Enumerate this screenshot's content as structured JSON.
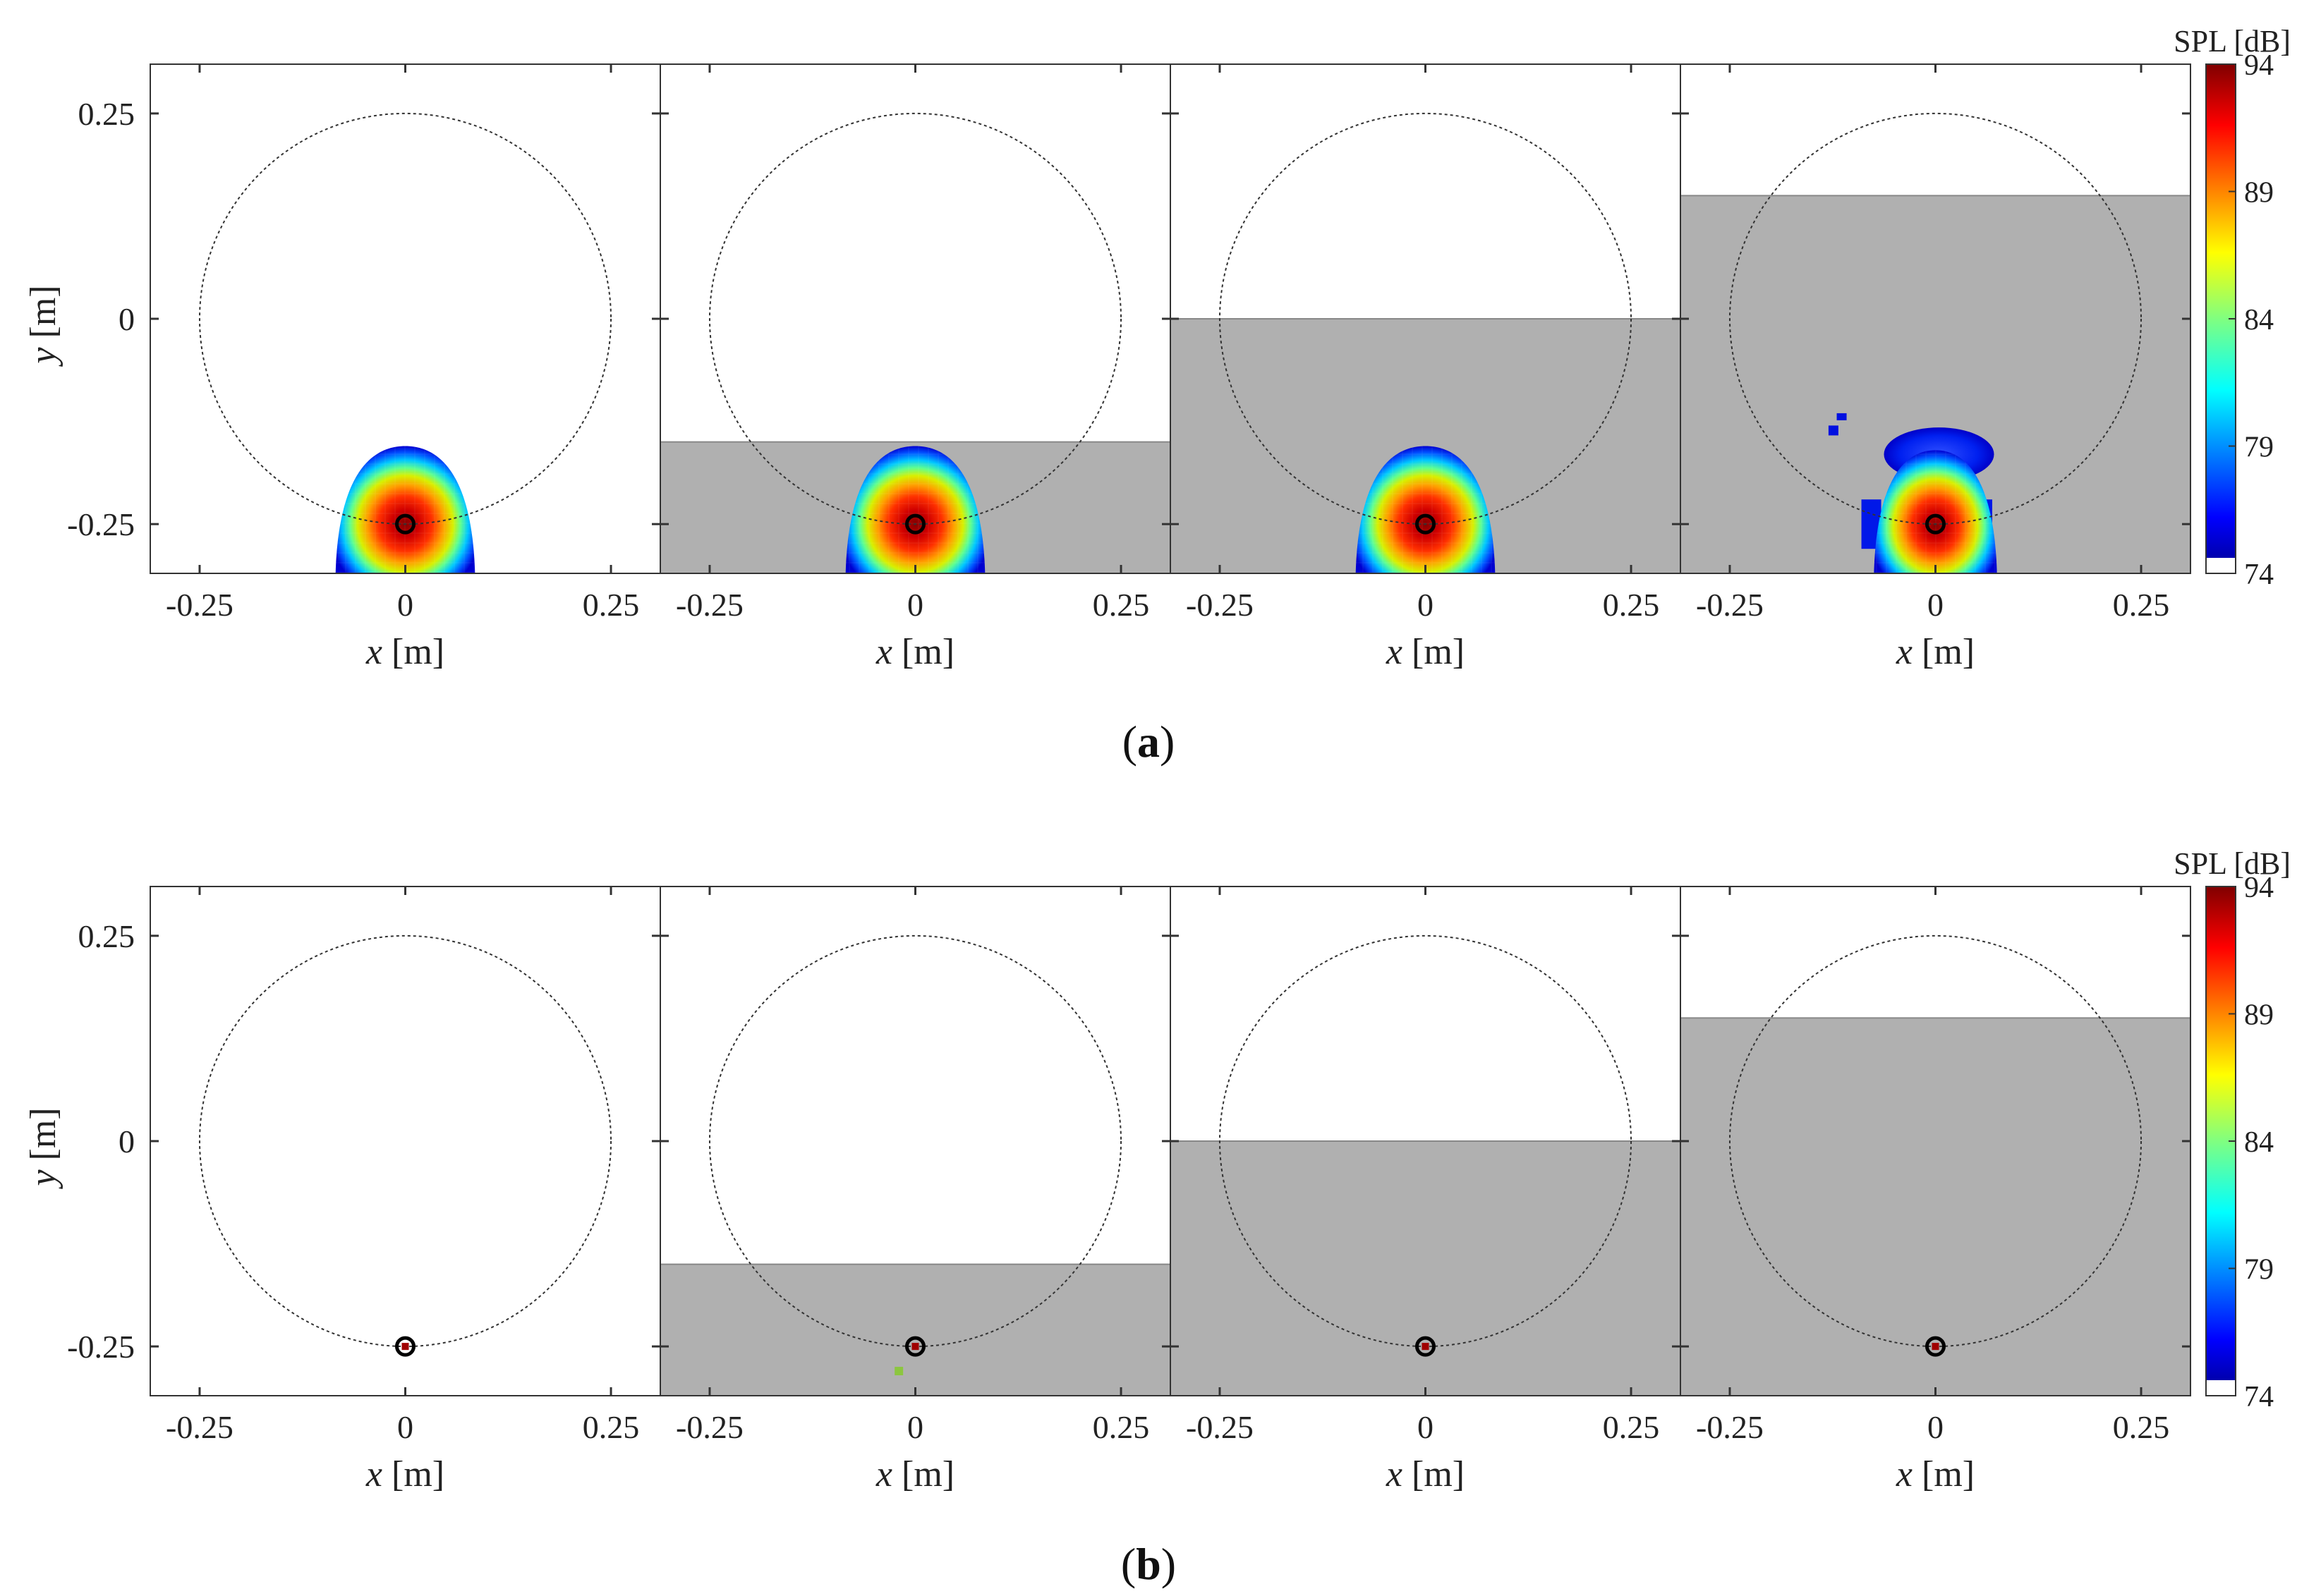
{
  "chart_data": [
    {
      "type": "heatmap",
      "caption": "(a)",
      "caption_letter": "a",
      "xlabel": "x",
      "ylabel": "y",
      "unit": "[m]",
      "xlim": [
        -0.31,
        0.31
      ],
      "ylim": [
        -0.31,
        0.31
      ],
      "xticks": [
        -0.25,
        0,
        0.25
      ],
      "xtick_labels": [
        "-0.25",
        "0",
        "0.25"
      ],
      "yticks": [
        0.25,
        0,
        -0.25
      ],
      "ytick_labels": [
        "0.25",
        "0",
        "-0.25"
      ],
      "circle": {
        "center": [
          0,
          0
        ],
        "radius": 0.25
      },
      "source": [
        0,
        -0.25
      ],
      "panels": [
        {
          "gray_top": null,
          "blob": {
            "half_width": 0.085,
            "top": -0.155
          },
          "spread_blue": false
        },
        {
          "gray_top": -0.15,
          "blob": {
            "half_width": 0.085,
            "top": -0.155
          },
          "spread_blue": false
        },
        {
          "gray_top": 0.0,
          "blob": {
            "half_width": 0.085,
            "top": -0.155
          },
          "spread_blue": false
        },
        {
          "gray_top": 0.15,
          "blob": {
            "half_width": 0.075,
            "top": -0.16
          },
          "spread_blue": true
        }
      ],
      "colorbar": {
        "title": "SPL [dB]",
        "ticks": [
          94,
          89,
          84,
          79,
          74
        ],
        "tick_labels": [
          "94",
          "89",
          "84",
          "79",
          "74"
        ],
        "range": [
          74,
          94
        ]
      }
    },
    {
      "type": "heatmap",
      "caption": "(b)",
      "caption_letter": "b",
      "xlabel": "x",
      "ylabel": "y",
      "unit": "[m]",
      "xlim": [
        -0.31,
        0.31
      ],
      "ylim": [
        -0.31,
        0.31
      ],
      "xticks": [
        -0.25,
        0,
        0.25
      ],
      "xtick_labels": [
        "-0.25",
        "0",
        "0.25"
      ],
      "yticks": [
        0.25,
        0,
        -0.25
      ],
      "ytick_labels": [
        "0.25",
        "0",
        "-0.25"
      ],
      "circle": {
        "center": [
          0,
          0
        ],
        "radius": 0.25
      },
      "source": [
        0,
        -0.25
      ],
      "panels": [
        {
          "gray_top": null,
          "blob": null,
          "spread_blue": false
        },
        {
          "gray_top": -0.15,
          "blob": null,
          "spread_blue": false,
          "stray_point": [
            -0.02,
            -0.28
          ]
        },
        {
          "gray_top": 0.0,
          "blob": null,
          "spread_blue": false
        },
        {
          "gray_top": 0.15,
          "blob": null,
          "spread_blue": false
        }
      ],
      "colorbar": {
        "title": "SPL [dB]",
        "ticks": [
          94,
          89,
          84,
          79,
          74
        ],
        "tick_labels": [
          "94",
          "89",
          "84",
          "79",
          "74"
        ],
        "range": [
          74,
          94
        ]
      }
    }
  ],
  "colors": {
    "gray": "#b0b0b0",
    "jet": [
      "#00008f",
      "#0000ff",
      "#0080ff",
      "#00ffff",
      "#80ff80",
      "#ffff00",
      "#ff8000",
      "#ff0000",
      "#800000"
    ],
    "stray": "#8cc63f"
  }
}
